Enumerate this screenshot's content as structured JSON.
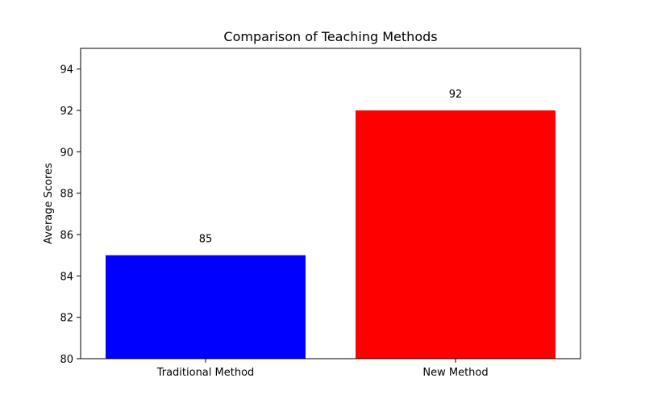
{
  "chart_data": {
    "type": "bar",
    "title": "Comparison of Teaching Methods",
    "xlabel": "",
    "ylabel": "Average Scores",
    "categories": [
      "Traditional Method",
      "New Method"
    ],
    "values": [
      85,
      92
    ],
    "data_labels": [
      "85",
      "92"
    ],
    "colors": [
      "#0000ff",
      "#ff0000"
    ],
    "ylim": [
      80,
      95
    ],
    "yticks": [
      80,
      82,
      84,
      86,
      88,
      90,
      92,
      94
    ],
    "grid": false,
    "legend": "none"
  }
}
